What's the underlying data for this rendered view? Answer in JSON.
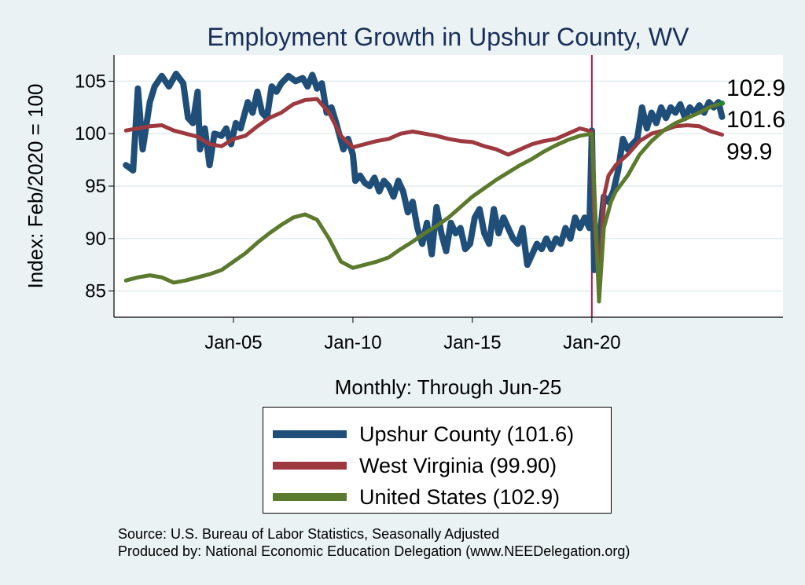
{
  "chart_data": {
    "type": "line",
    "title": "Employment Growth in Upshur  County, WV",
    "xlabel": "Monthly: Through Jun-25",
    "ylabel": "Index: Feb/2020 = 100",
    "xlim": [
      2000.0,
      2028.0
    ],
    "ylim": [
      82.5,
      107.5
    ],
    "x_ticks": [
      {
        "value": 2005.0,
        "label": "Jan-05"
      },
      {
        "value": 2010.0,
        "label": "Jan-10"
      },
      {
        "value": 2015.0,
        "label": "Jan-15"
      },
      {
        "value": 2020.0,
        "label": "Jan-20"
      }
    ],
    "y_ticks": [
      85,
      90,
      95,
      100,
      105
    ],
    "reference_line_x": 2020.0,
    "grid": true,
    "end_labels": [
      "102.9",
      "101.6",
      "99.9"
    ],
    "legend_position": "below",
    "series": [
      {
        "name": "Upshur  County (101.6)",
        "color": "#1f4e79",
        "width": 8,
        "points": [
          [
            2000.5,
            97.0
          ],
          [
            2000.8,
            96.5
          ],
          [
            2001.0,
            104.3
          ],
          [
            2001.2,
            98.5
          ],
          [
            2001.5,
            103.0
          ],
          [
            2001.7,
            104.5
          ],
          [
            2002.0,
            105.5
          ],
          [
            2002.3,
            104.5
          ],
          [
            2002.6,
            105.7
          ],
          [
            2002.9,
            104.8
          ],
          [
            2003.1,
            101.5
          ],
          [
            2003.3,
            101.0
          ],
          [
            2003.5,
            104.0
          ],
          [
            2003.6,
            98.5
          ],
          [
            2003.8,
            100.5
          ],
          [
            2004.0,
            97.0
          ],
          [
            2004.2,
            100.0
          ],
          [
            2004.5,
            99.8
          ],
          [
            2004.7,
            100.5
          ],
          [
            2004.9,
            99.0
          ],
          [
            2005.1,
            101.0
          ],
          [
            2005.3,
            100.5
          ],
          [
            2005.6,
            103.0
          ],
          [
            2005.8,
            102.0
          ],
          [
            2006.0,
            104.0
          ],
          [
            2006.2,
            102.0
          ],
          [
            2006.4,
            101.5
          ],
          [
            2006.6,
            104.5
          ],
          [
            2006.8,
            104.0
          ],
          [
            2007.0,
            104.8
          ],
          [
            2007.3,
            105.5
          ],
          [
            2007.6,
            105.0
          ],
          [
            2007.9,
            105.3
          ],
          [
            2008.1,
            104.5
          ],
          [
            2008.3,
            105.6
          ],
          [
            2008.5,
            104.3
          ],
          [
            2008.7,
            104.8
          ],
          [
            2008.9,
            102.0
          ],
          [
            2009.1,
            102.5
          ],
          [
            2009.3,
            101.0
          ],
          [
            2009.6,
            98.5
          ],
          [
            2009.8,
            99.5
          ],
          [
            2010.0,
            98.0
          ],
          [
            2010.1,
            95.5
          ],
          [
            2010.3,
            96.0
          ],
          [
            2010.5,
            95.3
          ],
          [
            2010.7,
            95.0
          ],
          [
            2010.9,
            95.8
          ],
          [
            2011.1,
            94.5
          ],
          [
            2011.3,
            95.5
          ],
          [
            2011.5,
            95.0
          ],
          [
            2011.7,
            94.0
          ],
          [
            2011.9,
            95.5
          ],
          [
            2012.1,
            94.5
          ],
          [
            2012.3,
            92.5
          ],
          [
            2012.5,
            93.5
          ],
          [
            2012.7,
            91.0
          ],
          [
            2012.9,
            89.5
          ],
          [
            2013.1,
            91.5
          ],
          [
            2013.3,
            88.5
          ],
          [
            2013.5,
            93.0
          ],
          [
            2013.7,
            90.5
          ],
          [
            2013.9,
            88.8
          ],
          [
            2014.1,
            91.5
          ],
          [
            2014.3,
            90.5
          ],
          [
            2014.5,
            91.0
          ],
          [
            2014.7,
            89.0
          ],
          [
            2014.9,
            89.5
          ],
          [
            2015.1,
            92.0
          ],
          [
            2015.3,
            92.8
          ],
          [
            2015.5,
            90.5
          ],
          [
            2015.7,
            89.5
          ],
          [
            2015.9,
            92.8
          ],
          [
            2016.1,
            90.5
          ],
          [
            2016.3,
            92.0
          ],
          [
            2016.5,
            91.0
          ],
          [
            2016.7,
            90.0
          ],
          [
            2016.9,
            89.5
          ],
          [
            2017.1,
            91.0
          ],
          [
            2017.3,
            87.5
          ],
          [
            2017.5,
            88.5
          ],
          [
            2017.7,
            89.5
          ],
          [
            2017.9,
            89.0
          ],
          [
            2018.1,
            90.0
          ],
          [
            2018.3,
            89.0
          ],
          [
            2018.5,
            90.0
          ],
          [
            2018.7,
            89.5
          ],
          [
            2018.9,
            91.0
          ],
          [
            2019.1,
            90.0
          ],
          [
            2019.3,
            92.0
          ],
          [
            2019.5,
            91.0
          ],
          [
            2019.7,
            92.0
          ],
          [
            2019.9,
            91.0
          ],
          [
            2020.0,
            100.3
          ],
          [
            2020.1,
            87.0
          ],
          [
            2020.2,
            88.0
          ],
          [
            2020.35,
            90.5
          ],
          [
            2020.5,
            94.0
          ],
          [
            2020.7,
            93.5
          ],
          [
            2020.9,
            94.5
          ],
          [
            2021.1,
            96.5
          ],
          [
            2021.3,
            99.5
          ],
          [
            2021.5,
            98.5
          ],
          [
            2021.7,
            99.0
          ],
          [
            2021.9,
            99.5
          ],
          [
            2022.1,
            102.5
          ],
          [
            2022.3,
            100.5
          ],
          [
            2022.5,
            102.0
          ],
          [
            2022.7,
            101.0
          ],
          [
            2022.9,
            102.5
          ],
          [
            2023.1,
            101.5
          ],
          [
            2023.3,
            102.5
          ],
          [
            2023.5,
            102.0
          ],
          [
            2023.7,
            102.8
          ],
          [
            2023.9,
            101.5
          ],
          [
            2024.1,
            102.5
          ],
          [
            2024.3,
            102.0
          ],
          [
            2024.5,
            102.7
          ],
          [
            2024.7,
            102.0
          ],
          [
            2024.9,
            103.0
          ],
          [
            2025.1,
            102.5
          ],
          [
            2025.3,
            103.0
          ],
          [
            2025.45,
            101.6
          ]
        ]
      },
      {
        "name": "West Virginia (99.90)",
        "color": "#9e3a3f",
        "width": 5,
        "points": [
          [
            2000.5,
            100.3
          ],
          [
            2001.0,
            100.5
          ],
          [
            2001.5,
            100.7
          ],
          [
            2002.0,
            100.8
          ],
          [
            2002.5,
            100.3
          ],
          [
            2003.0,
            100.0
          ],
          [
            2003.5,
            99.7
          ],
          [
            2004.0,
            99.0
          ],
          [
            2004.5,
            98.8
          ],
          [
            2005.0,
            99.5
          ],
          [
            2005.5,
            99.8
          ],
          [
            2006.0,
            100.7
          ],
          [
            2006.5,
            101.5
          ],
          [
            2007.0,
            102.0
          ],
          [
            2007.5,
            102.8
          ],
          [
            2008.0,
            103.2
          ],
          [
            2008.5,
            103.3
          ],
          [
            2009.0,
            102.0
          ],
          [
            2009.5,
            99.8
          ],
          [
            2010.0,
            98.7
          ],
          [
            2010.5,
            99.0
          ],
          [
            2011.0,
            99.3
          ],
          [
            2011.5,
            99.5
          ],
          [
            2012.0,
            100.0
          ],
          [
            2012.5,
            100.2
          ],
          [
            2013.0,
            100.0
          ],
          [
            2013.5,
            99.8
          ],
          [
            2014.0,
            99.5
          ],
          [
            2014.5,
            99.3
          ],
          [
            2015.0,
            99.2
          ],
          [
            2015.5,
            98.8
          ],
          [
            2016.0,
            98.5
          ],
          [
            2016.5,
            98.0
          ],
          [
            2017.0,
            98.5
          ],
          [
            2017.5,
            99.0
          ],
          [
            2018.0,
            99.3
          ],
          [
            2018.5,
            99.5
          ],
          [
            2019.0,
            100.0
          ],
          [
            2019.5,
            100.5
          ],
          [
            2020.0,
            100.2
          ],
          [
            2020.1,
            92.0
          ],
          [
            2020.3,
            85.5
          ],
          [
            2020.5,
            94.0
          ],
          [
            2020.7,
            96.0
          ],
          [
            2021.0,
            97.0
          ],
          [
            2021.5,
            98.0
          ],
          [
            2022.0,
            99.3
          ],
          [
            2022.5,
            100.0
          ],
          [
            2023.0,
            100.3
          ],
          [
            2023.5,
            100.7
          ],
          [
            2024.0,
            100.8
          ],
          [
            2024.5,
            100.7
          ],
          [
            2025.0,
            100.2
          ],
          [
            2025.45,
            99.9
          ]
        ]
      },
      {
        "name": "United States (102.9)",
        "color": "#5b7a2e",
        "width": 5,
        "points": [
          [
            2000.5,
            86.0
          ],
          [
            2001.0,
            86.3
          ],
          [
            2001.5,
            86.5
          ],
          [
            2002.0,
            86.3
          ],
          [
            2002.5,
            85.8
          ],
          [
            2003.0,
            86.0
          ],
          [
            2003.5,
            86.3
          ],
          [
            2004.0,
            86.6
          ],
          [
            2004.5,
            87.0
          ],
          [
            2005.0,
            87.8
          ],
          [
            2005.5,
            88.6
          ],
          [
            2006.0,
            89.6
          ],
          [
            2006.5,
            90.5
          ],
          [
            2007.0,
            91.3
          ],
          [
            2007.5,
            92.0
          ],
          [
            2008.0,
            92.3
          ],
          [
            2008.5,
            91.8
          ],
          [
            2009.0,
            90.0
          ],
          [
            2009.5,
            87.8
          ],
          [
            2010.0,
            87.2
          ],
          [
            2010.5,
            87.5
          ],
          [
            2011.0,
            87.8
          ],
          [
            2011.5,
            88.2
          ],
          [
            2012.0,
            89.0
          ],
          [
            2012.5,
            89.7
          ],
          [
            2013.0,
            90.5
          ],
          [
            2013.5,
            91.2
          ],
          [
            2014.0,
            92.0
          ],
          [
            2014.5,
            93.0
          ],
          [
            2015.0,
            94.0
          ],
          [
            2015.5,
            94.8
          ],
          [
            2016.0,
            95.6
          ],
          [
            2016.5,
            96.3
          ],
          [
            2017.0,
            97.0
          ],
          [
            2017.5,
            97.6
          ],
          [
            2018.0,
            98.3
          ],
          [
            2018.5,
            98.9
          ],
          [
            2019.0,
            99.4
          ],
          [
            2019.5,
            99.8
          ],
          [
            2020.0,
            100.0
          ],
          [
            2020.1,
            95.0
          ],
          [
            2020.3,
            84.0
          ],
          [
            2020.5,
            91.0
          ],
          [
            2020.8,
            93.5
          ],
          [
            2021.0,
            94.5
          ],
          [
            2021.5,
            96.0
          ],
          [
            2022.0,
            98.0
          ],
          [
            2022.5,
            99.3
          ],
          [
            2023.0,
            100.3
          ],
          [
            2023.5,
            101.0
          ],
          [
            2024.0,
            101.5
          ],
          [
            2024.5,
            102.0
          ],
          [
            2025.0,
            102.6
          ],
          [
            2025.45,
            102.9
          ]
        ]
      }
    ]
  },
  "footer": {
    "source": "Source: U.S. Bureau of Labor Statistics, Seasonally Adjusted",
    "produced": "Produced by: National Economic Education Delegation (www.NEEDelegation.org)"
  }
}
